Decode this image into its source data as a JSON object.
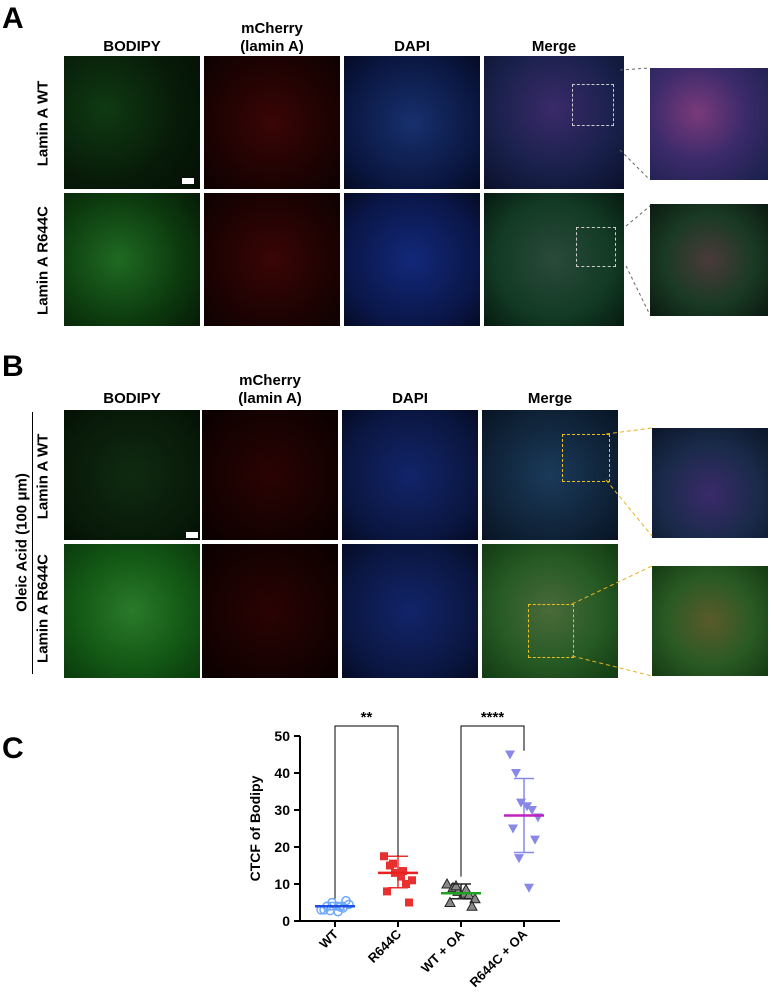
{
  "panel_a": {
    "letter": "A",
    "columns": [
      "BODIPY",
      "mCherry",
      "(lamin A)",
      "DAPI",
      "Merge"
    ],
    "rows": [
      "Lamin A WT",
      "Lamin A R644C"
    ]
  },
  "panel_b": {
    "letter": "B",
    "columns": [
      "BODIPY",
      "mCherry",
      "(lamin A)",
      "DAPI",
      "Merge"
    ],
    "rows": [
      "Lamin A WT",
      "Lamin A R644C"
    ],
    "group_label": "Oleic Acid (100 μm)"
  },
  "panel_c": {
    "letter": "C"
  },
  "colors": {
    "bodipy": "#1a8a1a",
    "mcherry": "#e01010",
    "dapi": "#2a4fd0",
    "wt": "#1f4fe0",
    "r644c": "#e82020",
    "wt_oa": "#22a022",
    "r644c_oa": "#c020c0"
  },
  "chart_data": {
    "type": "scatter",
    "categories": [
      "WT",
      "R644C",
      "WT + OA",
      "R644C + OA"
    ],
    "ylabel": "CTCF of Bodipy",
    "xlabel": "",
    "ylim": [
      0,
      50
    ],
    "yticks": [
      0,
      10,
      20,
      30,
      40,
      50
    ],
    "series": [
      {
        "category": "WT",
        "marker": "circle-open",
        "color": "#6fa8ff",
        "points": [
          3,
          4,
          5,
          2.5,
          3.5,
          4.5,
          3,
          5.5,
          2.8,
          3.8
        ],
        "mean": 4,
        "sd_low": 3,
        "sd_high": 5
      },
      {
        "category": "R644C",
        "marker": "square",
        "color": "#e83030",
        "points": [
          17.5,
          15,
          13,
          12,
          10,
          11,
          8,
          5,
          15.5,
          13.5
        ],
        "mean": 13,
        "sd_low": 9,
        "sd_high": 17.5
      },
      {
        "category": "WT + OA",
        "marker": "triangle-up",
        "color": "#555555",
        "points": [
          10,
          9,
          8,
          7.5,
          7,
          6,
          5,
          4,
          9.5,
          8.5
        ],
        "mean": 7.5,
        "sd_low": 6,
        "sd_high": 10
      },
      {
        "category": "R644C + OA",
        "marker": "triangle-down",
        "color": "#8888e8",
        "points": [
          45,
          40,
          32,
          31,
          30,
          28,
          25,
          22,
          17,
          9
        ],
        "mean": 28.5,
        "sd_low": 18.5,
        "sd_high": 38.5
      }
    ],
    "significance": [
      {
        "from": "WT",
        "to": "R644C",
        "label": "**"
      },
      {
        "from": "WT + OA",
        "to": "R644C + OA",
        "label": "****"
      }
    ]
  }
}
